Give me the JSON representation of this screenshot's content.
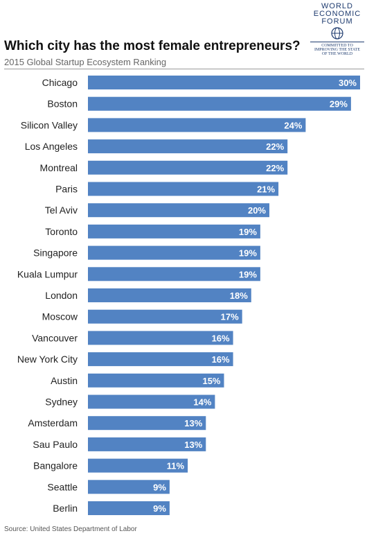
{
  "logo": {
    "line1": "WORLD",
    "line2": "ECONOMIC",
    "line3": "FORUM",
    "tagline1": "COMMITTED TO",
    "tagline2": "IMPROVING THE STATE",
    "tagline3": "OF THE WORLD",
    "color": "#1d3a6e"
  },
  "title": "Which city has the most female entrepreneurs?",
  "subtitle": "2015 Global Startup Ecosystem Ranking",
  "source": "Source: United States Department of Labor",
  "chart_data": {
    "type": "bar",
    "orientation": "horizontal",
    "categories": [
      "Chicago",
      "Boston",
      "Silicon Valley",
      "Los Angeles",
      "Montreal",
      "Paris",
      "Tel Aviv",
      "Toronto",
      "Singapore",
      "Kuala Lumpur",
      "London",
      "Moscow",
      "Vancouver",
      "New York City",
      "Austin",
      "Sydney",
      "Amsterdam",
      "Sau Paulo",
      "Bangalore",
      "Seattle",
      "Berlin"
    ],
    "values": [
      30,
      29,
      24,
      22,
      22,
      21,
      20,
      19,
      19,
      19,
      18,
      17,
      16,
      16,
      15,
      14,
      13,
      13,
      11,
      9,
      9
    ],
    "value_suffix": "%",
    "xlim": [
      0,
      30
    ],
    "grid": false,
    "legend": "none",
    "bar_color": "#5283c3",
    "label_color": "#ffffff"
  }
}
